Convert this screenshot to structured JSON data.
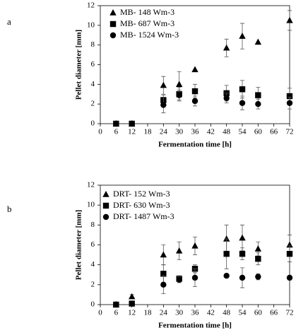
{
  "chart_data": [
    {
      "type": "scatter",
      "label": "a",
      "xlabel": "Fermentation time [h]",
      "ylabel": "Pellet diameter [mm]",
      "x": [
        6,
        12,
        24,
        30,
        36,
        48,
        54,
        60,
        72
      ],
      "xlim": [
        0,
        72
      ],
      "xticks": [
        0,
        6,
        12,
        18,
        24,
        30,
        36,
        42,
        48,
        54,
        60,
        66,
        72
      ],
      "ylim": [
        0,
        12
      ],
      "yticks": [
        0,
        2,
        4,
        6,
        8,
        10,
        12
      ],
      "series": [
        {
          "name": "MB- 148 Wm-3",
          "marker": "triangle",
          "color": "#000000",
          "values": [
            0,
            0,
            3.9,
            4.0,
            5.5,
            7.7,
            8.9,
            8.3,
            10.5
          ],
          "errors": [
            null,
            null,
            0.9,
            1.3,
            null,
            0.9,
            1.3,
            null,
            1.0
          ]
        },
        {
          "name": "MB- 687 Wm-3",
          "marker": "square",
          "color": "#000000",
          "values": [
            0,
            0,
            2.4,
            3.0,
            3.3,
            3.1,
            3.5,
            2.9,
            2.8
          ],
          "errors": [
            null,
            null,
            0.5,
            0.7,
            0.7,
            0.8,
            0.9,
            0.8,
            0.8
          ]
        },
        {
          "name": "MB- 1524 Wm-3",
          "marker": "circle",
          "color": "#000000",
          "values": [
            0,
            0,
            1.9,
            2.9,
            2.3,
            2.6,
            2.1,
            2.0,
            2.1
          ],
          "errors": [
            null,
            null,
            0.8,
            0.5,
            0.5,
            0.5,
            0.7,
            0.5,
            0.6
          ]
        }
      ]
    },
    {
      "type": "scatter",
      "label": "b",
      "xlabel": "Fermentation time [h]",
      "ylabel": "Pellet diameter [mm]",
      "x": [
        6,
        12,
        24,
        30,
        36,
        48,
        54,
        60,
        72
      ],
      "xlim": [
        0,
        72
      ],
      "xticks": [
        0,
        6,
        12,
        18,
        24,
        30,
        36,
        42,
        48,
        54,
        60,
        66,
        72
      ],
      "ylim": [
        0,
        12
      ],
      "yticks": [
        0,
        2,
        4,
        6,
        8,
        10,
        12
      ],
      "series": [
        {
          "name": "DRT- 152 Wm-3",
          "marker": "triangle",
          "color": "#000000",
          "values": [
            0,
            0.8,
            5.0,
            5.4,
            5.9,
            6.6,
            6.7,
            5.6,
            6.0
          ],
          "errors": [
            null,
            0.2,
            1.0,
            0.9,
            0.9,
            1.4,
            1.3,
            0.7,
            1.0
          ]
        },
        {
          "name": "DRT- 630 Wm-3",
          "marker": "square",
          "color": "#000000",
          "values": [
            0,
            0.1,
            3.1,
            2.6,
            3.6,
            5.1,
            5.1,
            4.6,
            5.1
          ],
          "errors": [
            null,
            null,
            0.9,
            0.3,
            0.4,
            1.5,
            0.6,
            0.6,
            0.8
          ]
        },
        {
          "name": "DRT- 1487 Wm-3",
          "marker": "circle",
          "color": "#000000",
          "values": [
            0,
            0.1,
            2.0,
            2.5,
            2.7,
            2.9,
            2.7,
            2.8,
            2.7
          ],
          "errors": [
            null,
            null,
            0.9,
            0.3,
            0.9,
            0.1,
            1.0,
            0.3,
            0.2
          ]
        }
      ]
    }
  ]
}
